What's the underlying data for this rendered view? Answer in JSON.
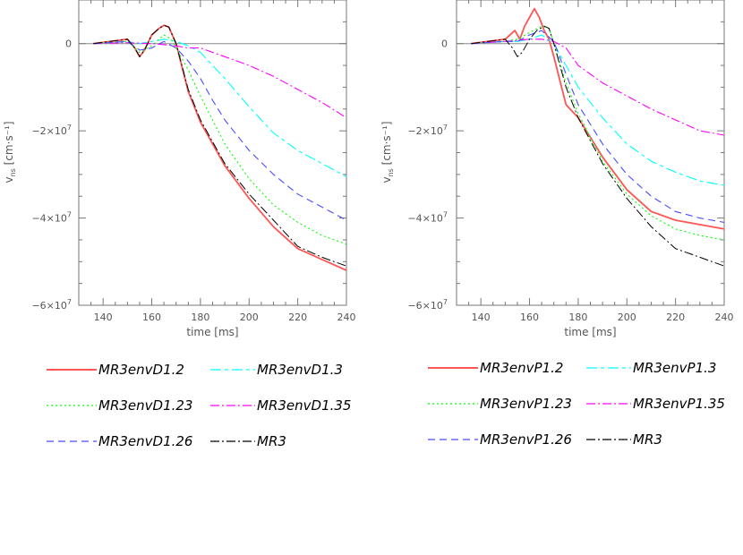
{
  "chart_data": [
    {
      "type": "line",
      "panel": "left",
      "ylabel_main": "v",
      "ylabel_sub": "ns",
      "ylabel_unit": "[cm·s⁻¹]",
      "xlabel": "time [ms]",
      "xlim": [
        130,
        240
      ],
      "ylim": [
        -60000000.0,
        10000000.0
      ],
      "xticks": [
        140,
        160,
        180,
        200,
        220,
        240
      ],
      "xtick_labels": [
        "140",
        "160",
        "180",
        "200",
        "220",
        "240"
      ],
      "yticks": [
        0,
        -20000000.0,
        -40000000.0,
        -60000000.0
      ],
      "ytick_labels": [
        {
          "mant": "0",
          "exp": ""
        },
        {
          "mant": "−2×10",
          "exp": "7"
        },
        {
          "mant": "−4×10",
          "exp": "7"
        },
        {
          "mant": "−6×10",
          "exp": "7"
        }
      ],
      "series": [
        {
          "name": "MR3envD1.2",
          "color": "#ff5555",
          "dash": "",
          "width": 1.8,
          "x": [
            136,
            150,
            153,
            155,
            157,
            160,
            163,
            165,
            167,
            170,
            175,
            180,
            190,
            200,
            210,
            220,
            230,
            240
          ],
          "y": [
            0,
            1000000.0,
            -1000000.0,
            -3000000.0,
            -1500000.0,
            2000000.0,
            3500000.0,
            4200000.0,
            3800000.0,
            0,
            -11000000.0,
            -18000000.0,
            -28000000.0,
            -35500000.0,
            -42000000.0,
            -47000000.0,
            -49500000.0,
            -52000000.0
          ]
        },
        {
          "name": "MR3envD1.3",
          "color": "#00ffff",
          "dash": "12,4,4,4",
          "width": 1.1,
          "x": [
            136,
            150,
            155,
            160,
            165,
            170,
            175,
            180,
            185,
            190,
            200,
            210,
            220,
            230,
            240
          ],
          "y": [
            0,
            500000.0,
            0,
            500000.0,
            1000000.0,
            500000.0,
            -500000.0,
            -2000000.0,
            -5000000.0,
            -8000000.0,
            -14500000.0,
            -20500000.0,
            -24500000.0,
            -27500000.0,
            -30500000.0
          ]
        },
        {
          "name": "MR3envD1.23",
          "color": "#00ff00",
          "dash": "2,3",
          "width": 1.1,
          "x": [
            136,
            150,
            155,
            160,
            163,
            165,
            168,
            170,
            175,
            180,
            185,
            190,
            200,
            210,
            220,
            230,
            240
          ],
          "y": [
            0,
            500000.0,
            -2000000.0,
            -500000.0,
            1000000.0,
            2000000.0,
            1000000.0,
            -1000000.0,
            -6000000.0,
            -12000000.0,
            -17500000.0,
            -23000000.0,
            -31000000.0,
            -37000000.0,
            -41000000.0,
            -44000000.0,
            -46000000.0
          ]
        },
        {
          "name": "MR3envD1.35",
          "color": "#ff00ff",
          "dash": "10,3,2,3",
          "width": 1.1,
          "x": [
            136,
            150,
            160,
            170,
            175,
            180,
            185,
            190,
            200,
            210,
            220,
            230,
            240
          ],
          "y": [
            0,
            200000.0,
            0,
            -500000.0,
            -1000000.0,
            -1000000.0,
            -2000000.0,
            -3000000.0,
            -5000000.0,
            -7500000.0,
            -10500000.0,
            -13500000.0,
            -17000000.0
          ]
        },
        {
          "name": "MR3envD1.26",
          "color": "#4b4bff",
          "dash": "8,5",
          "width": 1.1,
          "x": [
            136,
            150,
            155,
            160,
            165,
            170,
            175,
            180,
            185,
            190,
            200,
            210,
            220,
            230,
            240
          ],
          "y": [
            0,
            500000.0,
            -1500000.0,
            -1000000.0,
            500000.0,
            -1000000.0,
            -4000000.0,
            -8000000.0,
            -13000000.0,
            -17500000.0,
            -24500000.0,
            -30000000.0,
            -34500000.0,
            -37500000.0,
            -40500000.0
          ]
        },
        {
          "name": "MR3",
          "color": "#000000",
          "dash": "10,3,2,3",
          "width": 1.0,
          "x": [
            136,
            150,
            153,
            155,
            157,
            160,
            163,
            165,
            167,
            170,
            175,
            180,
            190,
            200,
            210,
            220,
            230,
            240
          ],
          "y": [
            0,
            1000000.0,
            -1000000.0,
            -3000000.0,
            -1500000.0,
            2000000.0,
            3500000.0,
            4200000.0,
            3800000.0,
            0,
            -10500000.0,
            -17500000.0,
            -27500000.0,
            -34500000.0,
            -40500000.0,
            -46500000.0,
            -49000000.0,
            -51000000.0
          ]
        }
      ]
    },
    {
      "type": "line",
      "panel": "right",
      "ylabel_main": "v",
      "ylabel_sub": "ns",
      "ylabel_unit": "[cm·s⁻¹]",
      "xlabel": "time [ms]",
      "xlim": [
        130,
        240
      ],
      "ylim": [
        -60000000.0,
        10000000.0
      ],
      "xticks": [
        140,
        160,
        180,
        200,
        220,
        240
      ],
      "xtick_labels": [
        "140",
        "160",
        "180",
        "200",
        "220",
        "240"
      ],
      "yticks": [
        0,
        -20000000.0,
        -40000000.0,
        -60000000.0
      ],
      "ytick_labels": [
        {
          "mant": "0",
          "exp": ""
        },
        {
          "mant": "−2×10",
          "exp": "7"
        },
        {
          "mant": "−4×10",
          "exp": "7"
        },
        {
          "mant": "−6×10",
          "exp": "7"
        }
      ],
      "series": [
        {
          "name": "MR3envP1.2",
          "color": "#ff5555",
          "dash": "",
          "width": 1.8,
          "x": [
            136,
            150,
            154,
            156,
            158,
            160,
            162,
            164,
            166,
            168,
            170,
            175,
            180,
            190,
            200,
            210,
            220,
            230,
            240
          ],
          "y": [
            0,
            1000000.0,
            3000000.0,
            1000000.0,
            4000000.0,
            6000000.0,
            8000000.0,
            6000000.0,
            3000000.0,
            1000000.0,
            -3000000.0,
            -14000000.0,
            -17000000.0,
            -26000000.0,
            -33500000.0,
            -38500000.0,
            -40500000.0,
            -41500000.0,
            -42500000.0
          ]
        },
        {
          "name": "MR3envP1.3",
          "color": "#00ffff",
          "dash": "12,4,4,4",
          "width": 1.1,
          "x": [
            136,
            150,
            155,
            160,
            165,
            170,
            175,
            180,
            190,
            200,
            210,
            220,
            230,
            240
          ],
          "y": [
            0,
            500000.0,
            500000.0,
            1000000.0,
            2000000.0,
            0,
            -5000000.0,
            -10000000.0,
            -17000000.0,
            -23000000.0,
            -27000000.0,
            -29500000.0,
            -31500000.0,
            -32500000.0
          ]
        },
        {
          "name": "MR3envP1.23",
          "color": "#00ff00",
          "dash": "2,3",
          "width": 1.1,
          "x": [
            136,
            150,
            155,
            160,
            165,
            168,
            170,
            175,
            180,
            190,
            200,
            210,
            220,
            230,
            240
          ],
          "y": [
            0,
            500000.0,
            1000000.0,
            2500000.0,
            4000000.0,
            3500000.0,
            0,
            -9000000.0,
            -16000000.0,
            -27000000.0,
            -34500000.0,
            -39500000.0,
            -42500000.0,
            -44000000.0,
            -45000000.0
          ]
        },
        {
          "name": "MR3envP1.35",
          "color": "#ff00ff",
          "dash": "10,3,2,3",
          "width": 1.1,
          "x": [
            136,
            150,
            160,
            165,
            170,
            175,
            180,
            190,
            200,
            210,
            220,
            230,
            240
          ],
          "y": [
            0,
            500000.0,
            1000000.0,
            1000000.0,
            500000.0,
            -1000000.0,
            -5000000.0,
            -9000000.0,
            -12000000.0,
            -15000000.0,
            -17500000.0,
            -20000000.0,
            -21000000.0
          ]
        },
        {
          "name": "MR3envP1.26",
          "color": "#4b4bff",
          "dash": "8,5",
          "width": 1.1,
          "x": [
            136,
            150,
            155,
            160,
            165,
            170,
            175,
            180,
            190,
            200,
            210,
            220,
            230,
            240
          ],
          "y": [
            0,
            500000.0,
            500000.0,
            2000000.0,
            3000000.0,
            500000.0,
            -7000000.0,
            -14000000.0,
            -23000000.0,
            -30000000.0,
            -35000000.0,
            -38500000.0,
            -40000000.0,
            -41000000.0
          ]
        },
        {
          "name": "MR3",
          "color": "#000000",
          "dash": "10,3,2,3",
          "width": 1.0,
          "x": [
            136,
            150,
            153,
            155,
            157,
            160,
            163,
            166,
            168,
            170,
            175,
            180,
            190,
            200,
            210,
            220,
            230,
            240
          ],
          "y": [
            0,
            1000000.0,
            -1000000.0,
            -3000000.0,
            -2000000.0,
            1000000.0,
            3000000.0,
            4000000.0,
            3500000.0,
            0,
            -10000000.0,
            -17000000.0,
            -27500000.0,
            -35500000.0,
            -42000000.0,
            -47000000.0,
            -49000000.0,
            -51000000.0
          ]
        }
      ]
    }
  ]
}
